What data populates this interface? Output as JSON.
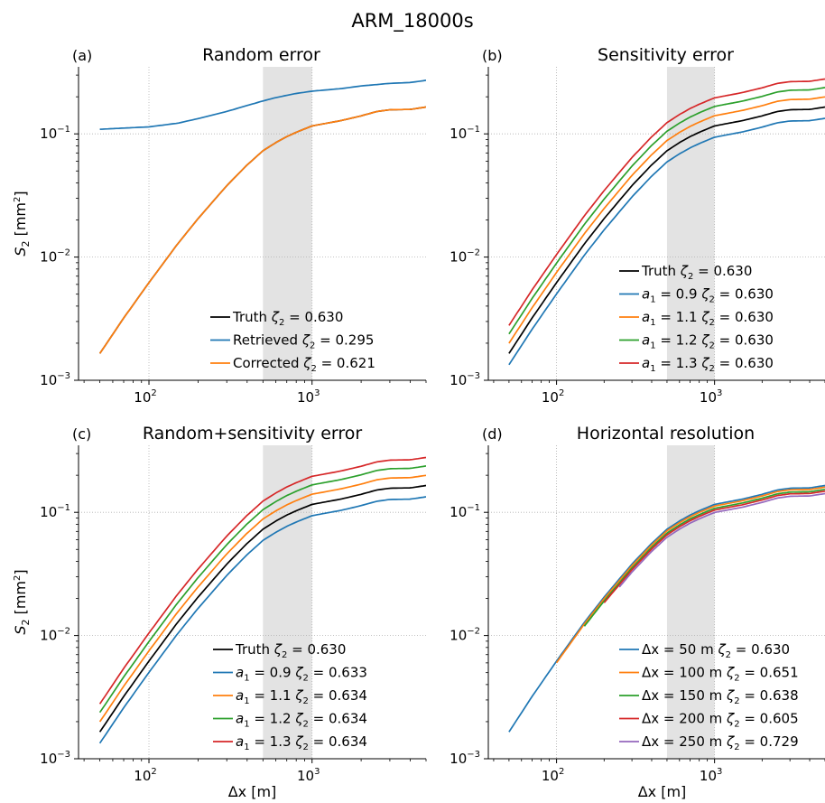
{
  "suptitle": "ARM_18000s",
  "colors": {
    "black": "#000000",
    "blue": "#1f77b4",
    "orange": "#ff7f0e",
    "green": "#2ca02c",
    "red": "#d62728",
    "purple": "#9467bd",
    "shade": "#e3e3e3"
  },
  "chart_data": [
    {
      "panel": "(a)",
      "title": "Random error",
      "type": "line",
      "xscale": "log",
      "yscale": "log",
      "xlim": [
        37,
        5000
      ],
      "ylim": [
        0.001,
        0.35
      ],
      "ylabel_main": "S",
      "ylabel_sub": "2",
      "ylabel_unit": "[mm",
      "ylabel_unit_sup": "2",
      "ylabel_close": "]",
      "xlabel": "",
      "shaded_x": [
        500,
        1000
      ],
      "legend": "lower-right",
      "series": [
        {
          "name": "Truth",
          "zeta": "0.630",
          "color": "black",
          "x": [
            50,
            70,
            100,
            150,
            200,
            300,
            400,
            500,
            600,
            700,
            800,
            1000,
            1500,
            2000,
            2500,
            3000,
            4000,
            5000
          ],
          "y": [
            0.00165,
            0.0032,
            0.0062,
            0.0128,
            0.0205,
            0.038,
            0.056,
            0.073,
            0.085,
            0.095,
            0.103,
            0.116,
            0.128,
            0.14,
            0.152,
            0.157,
            0.158,
            0.165
          ]
        },
        {
          "name": "Retrieved",
          "zeta": "0.295",
          "color": "blue",
          "x": [
            50,
            100,
            150,
            200,
            300,
            400,
            500,
            600,
            800,
            1000,
            1500,
            2000,
            3000,
            4000,
            5000
          ],
          "y": [
            0.109,
            0.114,
            0.122,
            0.133,
            0.152,
            0.17,
            0.185,
            0.197,
            0.213,
            0.222,
            0.233,
            0.245,
            0.257,
            0.261,
            0.272
          ]
        },
        {
          "name": "Corrected",
          "zeta": "0.621",
          "color": "orange",
          "x": [
            50,
            70,
            100,
            150,
            200,
            300,
            400,
            500,
            600,
            700,
            800,
            1000,
            1500,
            2000,
            2500,
            3000,
            4000,
            5000
          ],
          "y": [
            0.00165,
            0.0032,
            0.0062,
            0.0128,
            0.0205,
            0.038,
            0.056,
            0.073,
            0.085,
            0.095,
            0.103,
            0.116,
            0.128,
            0.14,
            0.152,
            0.157,
            0.158,
            0.165
          ]
        }
      ],
      "legend_entries": [
        {
          "label": "Truth",
          "zeta": "= 0.630",
          "color": "black"
        },
        {
          "label": "Retrieved",
          "zeta": "= 0.295",
          "color": "blue"
        },
        {
          "label": "Corrected",
          "zeta": "= 0.621",
          "color": "orange"
        }
      ]
    },
    {
      "panel": "(b)",
      "title": "Sensitivity error",
      "type": "line",
      "xscale": "log",
      "yscale": "log",
      "xlim": [
        37,
        5000
      ],
      "ylim": [
        0.001,
        0.35
      ],
      "xlabel": "",
      "shaded_x": [
        500,
        1000
      ],
      "legend": "lower-right",
      "base": {
        "x": [
          50,
          70,
          100,
          150,
          200,
          300,
          400,
          500,
          600,
          700,
          800,
          1000,
          1500,
          2000,
          2500,
          3000,
          4000,
          5000
        ],
        "y": [
          0.00165,
          0.0032,
          0.0062,
          0.0128,
          0.0205,
          0.038,
          0.056,
          0.073,
          0.085,
          0.095,
          0.103,
          0.116,
          0.128,
          0.14,
          0.152,
          0.157,
          0.158,
          0.165
        ]
      },
      "series": [
        {
          "name": "Truth",
          "factor": 1.0,
          "color": "black"
        },
        {
          "name": "a1 = 0.9",
          "factor": 0.81,
          "color": "blue"
        },
        {
          "name": "a1 = 1.1",
          "factor": 1.21,
          "color": "orange"
        },
        {
          "name": "a1 = 1.2",
          "factor": 1.44,
          "color": "green"
        },
        {
          "name": "a1 = 1.3",
          "factor": 1.69,
          "color": "red"
        }
      ],
      "legend_entries": [
        {
          "label": "Truth",
          "zeta": "= 0.630",
          "color": "black"
        },
        {
          "label": "a1",
          "a1": "= 0.9",
          "zeta": "= 0.630",
          "color": "blue"
        },
        {
          "label": "a1",
          "a1": "= 1.1",
          "zeta": "= 0.630",
          "color": "orange"
        },
        {
          "label": "a1",
          "a1": "= 1.2",
          "zeta": "= 0.630",
          "color": "green"
        },
        {
          "label": "a1",
          "a1": "= 1.3",
          "zeta": "= 0.630",
          "color": "red"
        }
      ]
    },
    {
      "panel": "(c)",
      "title": "Random+sensitivity error",
      "type": "line",
      "xscale": "log",
      "yscale": "log",
      "xlim": [
        37,
        5000
      ],
      "ylim": [
        0.001,
        0.35
      ],
      "xlabel_main": "Δx",
      "xlabel_unit": "[m]",
      "shaded_x": [
        500,
        1000
      ],
      "legend": "lower-right",
      "base": {
        "x": [
          50,
          70,
          100,
          150,
          200,
          300,
          400,
          500,
          600,
          700,
          800,
          1000,
          1500,
          2000,
          2500,
          3000,
          4000,
          5000
        ],
        "y": [
          0.00165,
          0.0032,
          0.0062,
          0.0128,
          0.0205,
          0.038,
          0.056,
          0.073,
          0.085,
          0.095,
          0.103,
          0.116,
          0.128,
          0.14,
          0.152,
          0.157,
          0.158,
          0.165
        ]
      },
      "series": [
        {
          "name": "Truth",
          "factor": 1.0,
          "color": "black"
        },
        {
          "name": "a1 = 0.9",
          "factor": 0.81,
          "color": "blue"
        },
        {
          "name": "a1 = 1.1",
          "factor": 1.21,
          "color": "orange"
        },
        {
          "name": "a1 = 1.2",
          "factor": 1.44,
          "color": "green"
        },
        {
          "name": "a1 = 1.3",
          "factor": 1.69,
          "color": "red"
        }
      ],
      "legend_entries": [
        {
          "label": "Truth",
          "zeta": "= 0.630",
          "color": "black"
        },
        {
          "label": "a1",
          "a1": "= 0.9",
          "zeta": "= 0.633",
          "color": "blue"
        },
        {
          "label": "a1",
          "a1": "= 1.1",
          "zeta": "= 0.634",
          "color": "orange"
        },
        {
          "label": "a1",
          "a1": "= 1.2",
          "zeta": "= 0.634",
          "color": "green"
        },
        {
          "label": "a1",
          "a1": "= 1.3",
          "zeta": "= 0.634",
          "color": "red"
        }
      ]
    },
    {
      "panel": "(d)",
      "title": "Horizontal resolution",
      "type": "line",
      "xscale": "log",
      "yscale": "log",
      "xlim": [
        37,
        5000
      ],
      "ylim": [
        0.001,
        0.35
      ],
      "xlabel_main": "Δx",
      "xlabel_unit": "[m]",
      "shaded_x": [
        500,
        1000
      ],
      "legend": "lower-right",
      "base": {
        "x": [
          50,
          70,
          100,
          150,
          200,
          300,
          400,
          500,
          600,
          700,
          800,
          1000,
          1500,
          2000,
          2500,
          3000,
          4000,
          5000
        ],
        "y": [
          0.00165,
          0.0032,
          0.0062,
          0.0128,
          0.0205,
          0.038,
          0.056,
          0.073,
          0.085,
          0.095,
          0.103,
          0.116,
          0.128,
          0.14,
          0.152,
          0.157,
          0.158,
          0.165
        ]
      },
      "series": [
        {
          "name": "Δx = 50 m",
          "start": 50,
          "factor": 1.0,
          "color": "blue"
        },
        {
          "name": "Δx = 100 m",
          "start": 100,
          "factor": 0.97,
          "color": "orange"
        },
        {
          "name": "Δx = 150 m",
          "start": 150,
          "factor": 0.93,
          "color": "green"
        },
        {
          "name": "Δx = 200 m",
          "start": 200,
          "factor": 0.9,
          "color": "red"
        },
        {
          "name": "Δx = 250 m",
          "start": 250,
          "factor": 0.86,
          "color": "purple"
        }
      ],
      "legend_entries": [
        {
          "label": "Δx",
          "dx": "= 50 m",
          "zeta": "= 0.630",
          "color": "blue"
        },
        {
          "label": "Δx",
          "dx": "= 100 m",
          "zeta": "= 0.651",
          "color": "orange"
        },
        {
          "label": "Δx",
          "dx": "= 150 m",
          "zeta": "= 0.638",
          "color": "green"
        },
        {
          "label": "Δx",
          "dx": "= 200 m",
          "zeta": "= 0.605",
          "color": "red"
        },
        {
          "label": "Δx",
          "dx": "= 250 m",
          "zeta": "= 0.729",
          "color": "purple"
        }
      ]
    }
  ],
  "tick_labels": {
    "y": [
      "10",
      "10",
      "10"
    ],
    "y_exp": [
      "−3",
      "−2",
      "−1"
    ],
    "x": [
      "10",
      "10"
    ],
    "x_exp": [
      "2",
      "3"
    ]
  }
}
